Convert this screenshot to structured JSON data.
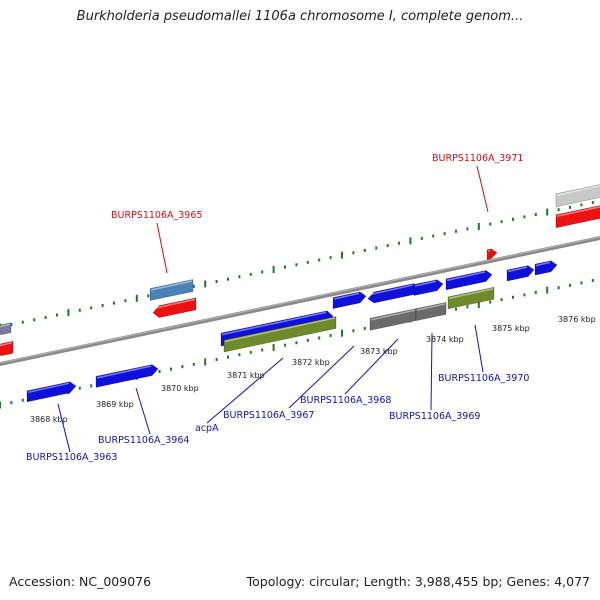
{
  "title": "Burkholderia pseudomallei 1106a chromosome I, complete genom...",
  "footer": {
    "accession": "Accession: NC_009076",
    "summary": "Topology: circular; Length: 3,988,455 bp; Genes: 4,077"
  },
  "colors": {
    "forward_gene": "#1010dd",
    "reverse_gene": "#ee1111",
    "rna_gene": "#4a82b8",
    "cds_olive": "#6f8a2a",
    "pseudo_gray": "#6b6b6b",
    "light_gray": "#c8c8c8",
    "tick_green": "#1f7a1f",
    "backbone": "#8a8a8a",
    "label_blue": "#1515b0",
    "label_red": "#cc1111"
  },
  "ticks": [
    {
      "label": "3868 kbp"
    },
    {
      "label": "3869 kbp"
    },
    {
      "label": "3870 kbp"
    },
    {
      "label": "3871 kbp"
    },
    {
      "label": "3872 kbp"
    },
    {
      "label": "3873 kbp"
    },
    {
      "label": "3874 kbp"
    },
    {
      "label": "3875 kbp"
    },
    {
      "label": "3876 kbp"
    }
  ],
  "genes": [
    {
      "label": "BURPS1106A_3963",
      "strand": "forward"
    },
    {
      "label": "BURPS1106A_3964",
      "strand": "forward"
    },
    {
      "label": "BURPS1106A_3965",
      "strand": "reverse"
    },
    {
      "label": "acpA",
      "strand": "forward"
    },
    {
      "label": "BURPS1106A_3967",
      "strand": "forward"
    },
    {
      "label": "BURPS1106A_3968",
      "strand": "forward"
    },
    {
      "label": "BURPS1106A_3969",
      "strand": "forward"
    },
    {
      "label": "BURPS1106A_3970",
      "strand": "forward"
    },
    {
      "label": "BURPS1106A_3971",
      "strand": "reverse"
    }
  ]
}
